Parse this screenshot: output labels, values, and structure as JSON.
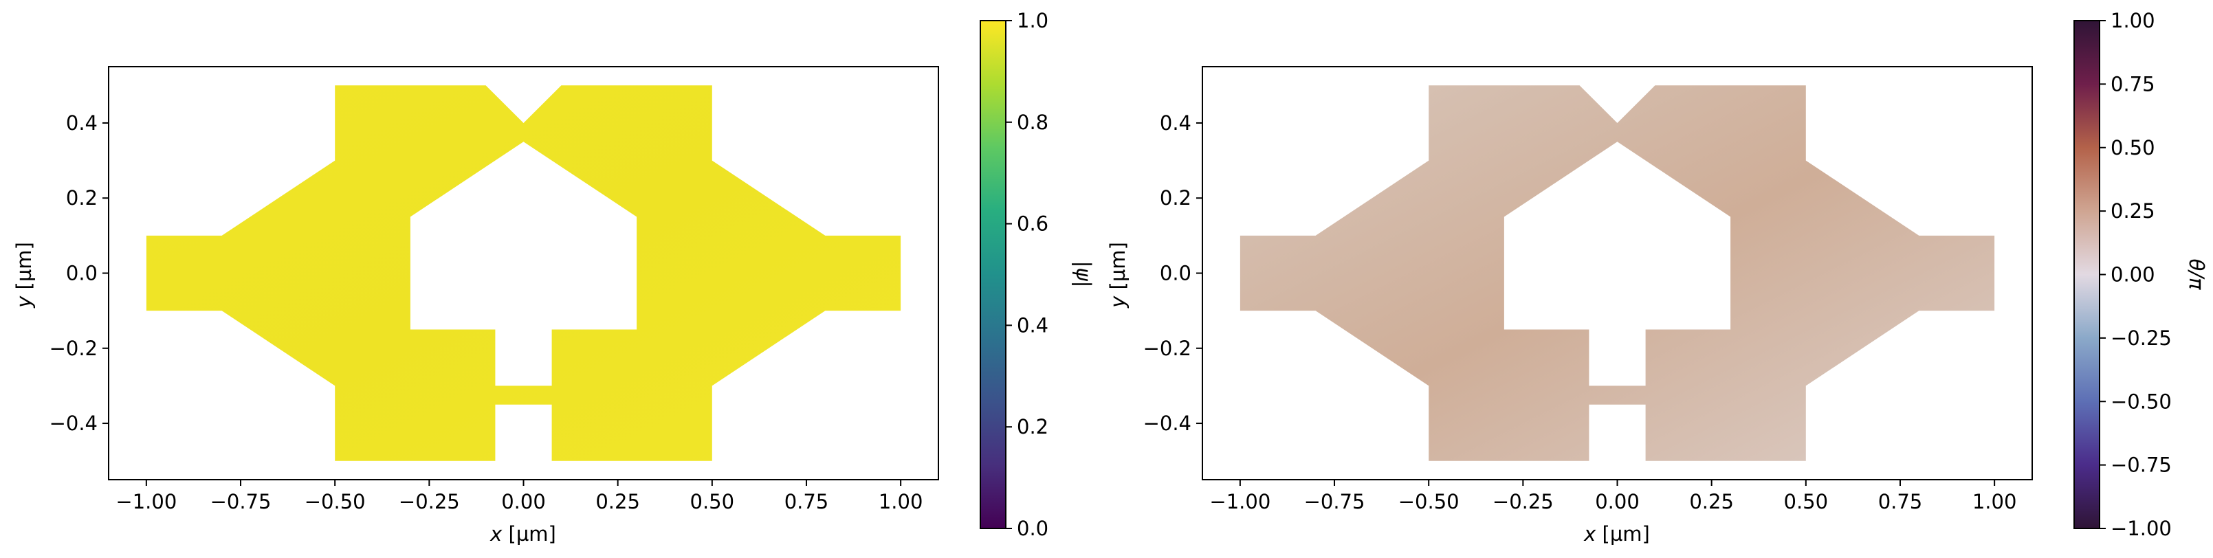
{
  "chart_data": [
    {
      "type": "heatmap",
      "title": "",
      "xlabel_var": "x",
      "xlabel_unit": " [µm]",
      "ylabel_var": "y",
      "ylabel_unit": " [µm]",
      "xlim": [
        -1.1,
        1.1
      ],
      "ylim": [
        -0.55,
        0.55
      ],
      "xticks": [
        -1.0,
        -0.75,
        -0.5,
        -0.25,
        0.0,
        0.25,
        0.5,
        0.75,
        1.0
      ],
      "xtick_labels": [
        "−1.00",
        "−0.75",
        "−0.50",
        "−0.25",
        "0.00",
        "0.25",
        "0.50",
        "0.75",
        "1.00"
      ],
      "yticks": [
        -0.4,
        -0.2,
        0.0,
        0.2,
        0.4
      ],
      "ytick_labels": [
        "−0.4",
        "−0.2",
        "0.0",
        "0.2",
        "0.4"
      ],
      "field_value_range": [
        0.98,
        1.0
      ],
      "colorbar": {
        "label": "|ψ|",
        "colormap": "viridis",
        "range": [
          0.0,
          1.0
        ],
        "ticks": [
          0.0,
          0.2,
          0.4,
          0.6,
          0.8,
          1.0
        ],
        "tick_labels": [
          "0.0",
          "0.2",
          "0.4",
          "0.6",
          "0.8",
          "1.0"
        ],
        "stops": [
          "#440154",
          "#472f7d",
          "#3b528b",
          "#2c728e",
          "#21918c",
          "#28ae80",
          "#5ec962",
          "#addc30",
          "#fde725"
        ]
      },
      "fill_colors": [
        "#f0e528",
        "#eee325",
        "#f1e62a"
      ]
    },
    {
      "type": "heatmap",
      "title": "",
      "xlabel_var": "x",
      "xlabel_unit": " [µm]",
      "ylabel_var": "y",
      "ylabel_unit": " [µm]",
      "xlim": [
        -1.1,
        1.1
      ],
      "ylim": [
        -0.55,
        0.55
      ],
      "xticks": [
        -1.0,
        -0.75,
        -0.5,
        -0.25,
        0.0,
        0.25,
        0.5,
        0.75,
        1.0
      ],
      "xtick_labels": [
        "−1.00",
        "−0.75",
        "−0.50",
        "−0.25",
        "0.00",
        "0.25",
        "0.50",
        "0.75",
        "1.00"
      ],
      "yticks": [
        -0.4,
        -0.2,
        0.0,
        0.2,
        0.4
      ],
      "ytick_labels": [
        "−0.4",
        "−0.2",
        "0.0",
        "0.2",
        "0.4"
      ],
      "field_value_range": [
        0.1,
        0.2
      ],
      "colorbar": {
        "label": "θ/π",
        "colormap": "twilight_shifted",
        "range": [
          -1.0,
          1.0
        ],
        "ticks": [
          -1.0,
          -0.75,
          -0.5,
          -0.25,
          0.0,
          0.25,
          0.5,
          0.75,
          1.0
        ],
        "tick_labels": [
          "−1.00",
          "−0.75",
          "−0.50",
          "−0.25",
          "0.00",
          "0.25",
          "0.50",
          "0.75",
          "1.00"
        ],
        "stops": [
          "#2f1436",
          "#4b2c8a",
          "#5d6fb5",
          "#8ba9c9",
          "#e2d9e2",
          "#cfa592",
          "#b3624a",
          "#6f1f4b",
          "#2f1436"
        ]
      },
      "fill_colors": [
        "#d8c6ba",
        "#cfae98",
        "#dccdc6"
      ]
    }
  ],
  "device_shape": {
    "outer": [
      [
        -1.0,
        0.1
      ],
      [
        -0.8,
        0.1
      ],
      [
        -0.5,
        0.3
      ],
      [
        -0.5,
        0.5
      ],
      [
        -0.1,
        0.5
      ],
      [
        0.0,
        0.4
      ],
      [
        0.1,
        0.5
      ],
      [
        0.5,
        0.5
      ],
      [
        0.5,
        0.3
      ],
      [
        0.8,
        0.1
      ],
      [
        1.0,
        0.1
      ],
      [
        1.0,
        -0.1
      ],
      [
        0.8,
        -0.1
      ],
      [
        0.5,
        -0.3
      ],
      [
        0.5,
        -0.5
      ],
      [
        0.075,
        -0.5
      ],
      [
        0.075,
        -0.35
      ],
      [
        -0.075,
        -0.35
      ],
      [
        -0.075,
        -0.5
      ],
      [
        -0.5,
        -0.5
      ],
      [
        -0.5,
        -0.3
      ],
      [
        -0.8,
        -0.1
      ],
      [
        -1.0,
        -0.1
      ]
    ],
    "hole": [
      [
        -0.3,
        0.15
      ],
      [
        0.0,
        0.35
      ],
      [
        0.3,
        0.15
      ],
      [
        0.3,
        -0.15
      ],
      [
        0.075,
        -0.15
      ],
      [
        0.075,
        -0.3
      ],
      [
        -0.075,
        -0.3
      ],
      [
        -0.075,
        -0.15
      ],
      [
        -0.3,
        -0.15
      ]
    ]
  }
}
